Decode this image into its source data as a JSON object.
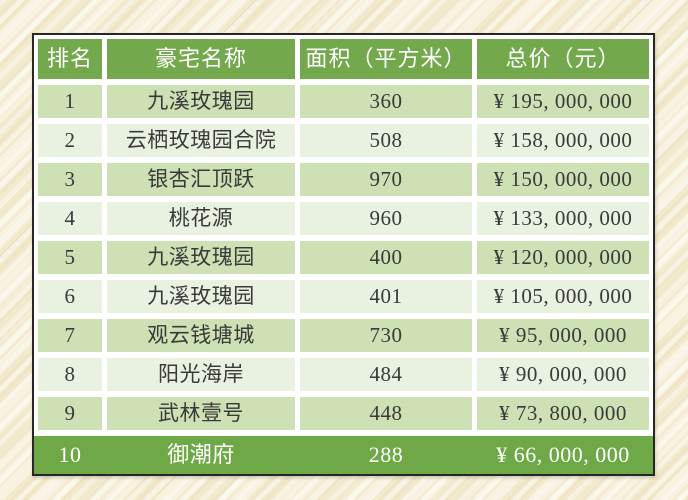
{
  "chart_data": {
    "type": "table",
    "columns": [
      "排名",
      "豪宅名称",
      "面积（平方米）",
      "总价（元）"
    ],
    "rows": [
      [
        "1",
        "九溪玫瑰园",
        "360",
        "¥ 195, 000, 000"
      ],
      [
        "2",
        "云栖玫瑰园合院",
        "508",
        "¥ 158, 000, 000"
      ],
      [
        "3",
        "银杏汇顶跃",
        "970",
        "¥ 150, 000, 000"
      ],
      [
        "4",
        "桃花源",
        "960",
        "¥ 133, 000, 000"
      ],
      [
        "5",
        "九溪玫瑰园",
        "400",
        "¥ 120, 000, 000"
      ],
      [
        "6",
        "九溪玫瑰园",
        "401",
        "¥ 105, 000, 000"
      ],
      [
        "7",
        "观云钱塘城",
        "730",
        "¥ 95, 000, 000"
      ],
      [
        "8",
        "阳光海岸",
        "484",
        "¥ 90, 000, 000"
      ],
      [
        "9",
        "武林壹号",
        "448",
        "¥ 73, 800, 000"
      ],
      [
        "10",
        "御潮府",
        "288",
        "¥ 66, 000, 000"
      ]
    ],
    "layout_hints": {
      "striped": true,
      "last_row_highlighted": true,
      "grid": "white cell spacing, dark outer frame"
    }
  },
  "colors": {
    "page_bg": "#f6efd8",
    "frame_border": "#262626",
    "header_green": "#74a84c",
    "total_green": "#6fa846",
    "row_odd": "#cde1b5",
    "row_even": "#e9f1e0",
    "body_text": "#3a3a3a",
    "header_text": "#ffffff"
  }
}
